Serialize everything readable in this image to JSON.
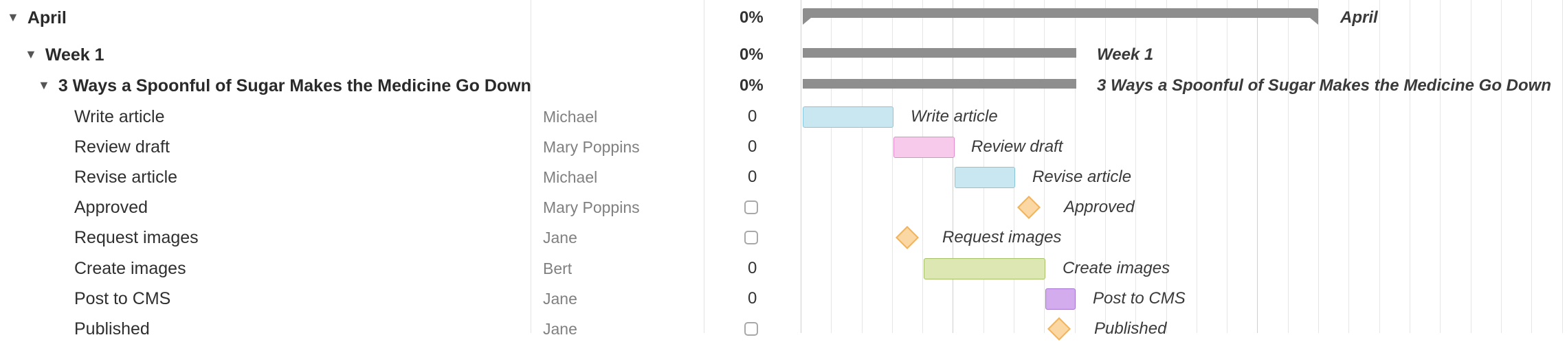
{
  "columns": {
    "left_rule": 772,
    "sep1": 1024,
    "sep2": 1165
  },
  "rows": [
    {
      "id": "april",
      "name": "April",
      "level": 0,
      "bold": true,
      "expanded": true,
      "assignee": "",
      "progress": "0%",
      "type": "summary",
      "bar_label": "April"
    },
    {
      "id": "week1",
      "name": "Week 1",
      "level": 1,
      "bold": true,
      "expanded": true,
      "assignee": "",
      "progress": "0%",
      "type": "summary",
      "bar_label": "Week 1"
    },
    {
      "id": "project",
      "name": "3 Ways a Spoonful of Sugar Makes the Medicine Go Down",
      "level": 2,
      "bold": true,
      "expanded": true,
      "assignee": "",
      "progress": "0%",
      "type": "summary",
      "bar_label": "3 Ways a Spoonful of Sugar Makes the Medicine Go Down"
    },
    {
      "id": "write",
      "name": "Write article",
      "level": 3,
      "bold": false,
      "assignee": "Michael",
      "progress": "0",
      "type": "task",
      "bar_label": "Write article",
      "color": "#c8e7f0",
      "border": "#86c6da"
    },
    {
      "id": "review",
      "name": "Review draft",
      "level": 3,
      "bold": false,
      "assignee": "Mary Poppins",
      "progress": "0",
      "type": "task",
      "bar_label": "Review draft",
      "color": "#f7c9ea",
      "border": "#e28acb"
    },
    {
      "id": "revise",
      "name": "Revise article",
      "level": 3,
      "bold": false,
      "assignee": "Michael",
      "progress": "0",
      "type": "task",
      "bar_label": "Revise article",
      "color": "#c8e7f0",
      "border": "#86c6da"
    },
    {
      "id": "approved",
      "name": "Approved",
      "level": 3,
      "bold": false,
      "assignee": "Mary Poppins",
      "progress": "",
      "type": "milestone",
      "bar_label": "Approved"
    },
    {
      "id": "reqimg",
      "name": "Request images",
      "level": 3,
      "bold": false,
      "assignee": "Jane",
      "progress": "",
      "type": "milestone",
      "bar_label": "Request images"
    },
    {
      "id": "create",
      "name": "Create images",
      "level": 3,
      "bold": false,
      "assignee": "Bert",
      "progress": "0",
      "type": "task",
      "bar_label": "Create images",
      "color": "#dce7b4",
      "border": "#a7c06a"
    },
    {
      "id": "post",
      "name": "Post to CMS",
      "level": 3,
      "bold": false,
      "assignee": "Jane",
      "progress": "0",
      "type": "task",
      "bar_label": "Post to CMS",
      "color": "#d2acec",
      "border": "#a574cf"
    },
    {
      "id": "published",
      "name": "Published",
      "level": 3,
      "bold": false,
      "assignee": "Jane",
      "progress": "",
      "type": "milestone",
      "bar_label": "Published"
    }
  ]
}
